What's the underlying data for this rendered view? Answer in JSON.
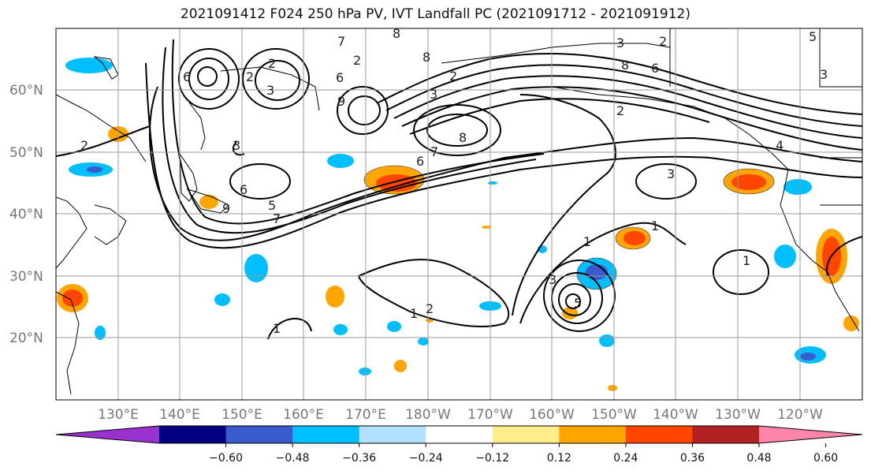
{
  "title": "2021091412 F024 250 hPa PV, IVT Landfall PC (2021091712 - 2021091912)",
  "lon_labels": [
    "130°E",
    "140°E",
    "150°E",
    "160°E",
    "170°E",
    "180°W",
    "170°W",
    "160°W",
    "150°W",
    "140°W",
    "130°W",
    "120°W"
  ],
  "lat_labels": [
    "60°N",
    "50°N",
    "40°N",
    "30°N",
    "20°N"
  ],
  "colorbar": {
    "colors": [
      "#9932cc",
      "#000080",
      "#3a5bcc",
      "#00bfff",
      "#b0e2ff",
      "#ffffff",
      "#ffec8b",
      "#ffa500",
      "#ff4500",
      "#b22222",
      "#ff85aa"
    ],
    "tick_labels": [
      "−0.60",
      "−0.48",
      "−0.36",
      "−0.24",
      "−0.12",
      "0.12",
      "0.24",
      "0.36",
      "0.48",
      "0.60"
    ]
  },
  "contour_labels": [
    "2",
    "7",
    "8",
    "3",
    "5",
    "8",
    "6",
    "2",
    "6",
    "2",
    "3",
    "3",
    "2",
    "8",
    "7",
    "6",
    "9",
    "3",
    "2",
    "5",
    "7",
    "6",
    "9",
    "1",
    "1",
    "3",
    "1",
    "2",
    "1",
    "1",
    "5",
    "3",
    "2",
    "8",
    "6",
    "3",
    "2",
    "4"
  ]
}
